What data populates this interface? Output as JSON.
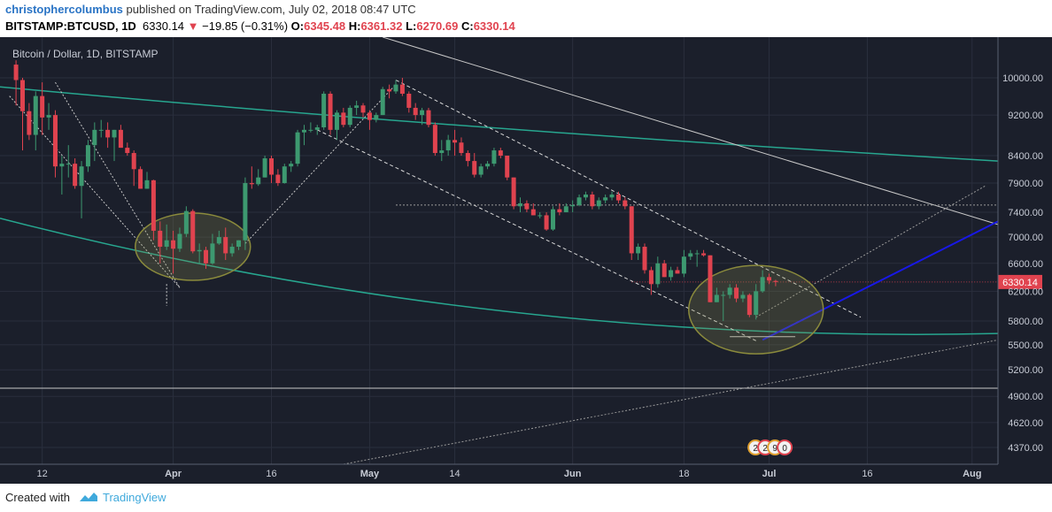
{
  "header": {
    "author": "christophercolumbus",
    "published_text": " published on TradingView.com, July 02, 2018 08:47 UTC",
    "symbol": "BITSTAMP:BTCUSD, 1D",
    "last": "6330.14",
    "change_arrow": "▼",
    "change": "−19.85 (−0.31%)",
    "o_label": "O:",
    "o_value": "6345.48",
    "h_label": "H:",
    "h_value": "6361.32",
    "l_label": "L:",
    "l_value": "6270.69",
    "c_label": "C:",
    "c_value": "6330.14"
  },
  "footer": {
    "created_with": "Created with",
    "brand": "TradingView"
  },
  "colors": {
    "background": "#1b1f2b",
    "up": "#3d9970",
    "down": "#e0434f",
    "ema": "#27a68f",
    "projection": "#1818e6",
    "ellipse": "#8a8a3c",
    "axis_text": "#c8ccd6",
    "price_tag": "#1b1f2b"
  },
  "chart_data": {
    "type": "candlestick",
    "title": "Bitcoin / Dollar, 1D, BITSTAMP",
    "y_axis": {
      "ticks": [
        4370,
        4620,
        4900,
        5200,
        5500,
        5800,
        6200,
        6600,
        7000,
        7400,
        7900,
        8400,
        9200,
        10000
      ],
      "tick_labels": [
        "4370.00",
        "4620.00",
        "4900.00",
        "5200.00",
        "5500.00",
        "5800.00",
        "6200.00",
        "6600.00",
        "7000.00",
        "7400.00",
        "7900.00",
        "8400.00",
        "9200.00",
        "10000.00"
      ],
      "scale": "log",
      "range": [
        4250,
        10500
      ]
    },
    "x_axis": {
      "ticks": [
        "12",
        "Apr",
        "16",
        "May",
        "14",
        "Jun",
        "18",
        "Jul",
        "16",
        "Aug"
      ],
      "range": [
        "2018-03-07",
        "2018-08-07"
      ]
    },
    "last_price_label": "6330.14",
    "last_price": 6330.14,
    "event_badges": [
      "2",
      "2",
      "9",
      "0"
    ],
    "candles": [
      {
        "d": "2018-03-08",
        "o": 10300,
        "h": 10400,
        "l": 9400,
        "c": 9950
      },
      {
        "d": "2018-03-09",
        "o": 9950,
        "h": 10000,
        "l": 8500,
        "c": 9280
      },
      {
        "d": "2018-03-10",
        "o": 9280,
        "h": 9450,
        "l": 8700,
        "c": 8800
      },
      {
        "d": "2018-03-11",
        "o": 8800,
        "h": 9700,
        "l": 8500,
        "c": 9600
      },
      {
        "d": "2018-03-12",
        "o": 9600,
        "h": 9900,
        "l": 8800,
        "c": 9150
      },
      {
        "d": "2018-03-13",
        "o": 9150,
        "h": 9450,
        "l": 8900,
        "c": 9200
      },
      {
        "d": "2018-03-14",
        "o": 9200,
        "h": 9300,
        "l": 8000,
        "c": 8200
      },
      {
        "d": "2018-03-15",
        "o": 8200,
        "h": 8400,
        "l": 7700,
        "c": 8250
      },
      {
        "d": "2018-03-16",
        "o": 8250,
        "h": 8600,
        "l": 8000,
        "c": 8250
      },
      {
        "d": "2018-03-17",
        "o": 8250,
        "h": 8350,
        "l": 7800,
        "c": 7850
      },
      {
        "d": "2018-03-18",
        "o": 7850,
        "h": 8300,
        "l": 7300,
        "c": 8200
      },
      {
        "d": "2018-03-19",
        "o": 8200,
        "h": 8700,
        "l": 8100,
        "c": 8600
      },
      {
        "d": "2018-03-20",
        "o": 8600,
        "h": 9050,
        "l": 8300,
        "c": 8900
      },
      {
        "d": "2018-03-21",
        "o": 8900,
        "h": 9100,
        "l": 8750,
        "c": 8900
      },
      {
        "d": "2018-03-22",
        "o": 8900,
        "h": 9050,
        "l": 8550,
        "c": 8750
      },
      {
        "d": "2018-03-23",
        "o": 8750,
        "h": 8900,
        "l": 8300,
        "c": 8900
      },
      {
        "d": "2018-03-24",
        "o": 8900,
        "h": 9000,
        "l": 8550,
        "c": 8550
      },
      {
        "d": "2018-03-25",
        "o": 8550,
        "h": 8650,
        "l": 8400,
        "c": 8450
      },
      {
        "d": "2018-03-26",
        "o": 8450,
        "h": 8500,
        "l": 7850,
        "c": 8150
      },
      {
        "d": "2018-03-27",
        "o": 8150,
        "h": 8200,
        "l": 7800,
        "c": 7800
      },
      {
        "d": "2018-03-28",
        "o": 7800,
        "h": 8100,
        "l": 7800,
        "c": 7950
      },
      {
        "d": "2018-03-29",
        "o": 7950,
        "h": 7960,
        "l": 6950,
        "c": 7100
      },
      {
        "d": "2018-03-30",
        "o": 7100,
        "h": 7250,
        "l": 6600,
        "c": 6850
      },
      {
        "d": "2018-03-31",
        "o": 6850,
        "h": 7200,
        "l": 6800,
        "c": 6950
      },
      {
        "d": "2018-04-01",
        "o": 6950,
        "h": 7100,
        "l": 6450,
        "c": 6820
      },
      {
        "d": "2018-04-02",
        "o": 6820,
        "h": 7150,
        "l": 6770,
        "c": 7050
      },
      {
        "d": "2018-04-03",
        "o": 7050,
        "h": 7500,
        "l": 7000,
        "c": 7420
      },
      {
        "d": "2018-04-04",
        "o": 7420,
        "h": 7450,
        "l": 6750,
        "c": 6780
      },
      {
        "d": "2018-04-05",
        "o": 6780,
        "h": 6900,
        "l": 6600,
        "c": 6800
      },
      {
        "d": "2018-04-06",
        "o": 6800,
        "h": 6850,
        "l": 6520,
        "c": 6600
      },
      {
        "d": "2018-04-07",
        "o": 6600,
        "h": 7050,
        "l": 6580,
        "c": 6900
      },
      {
        "d": "2018-04-08",
        "o": 6900,
        "h": 7100,
        "l": 6880,
        "c": 7000
      },
      {
        "d": "2018-04-09",
        "o": 7000,
        "h": 7150,
        "l": 6650,
        "c": 6750
      },
      {
        "d": "2018-04-10",
        "o": 6750,
        "h": 6900,
        "l": 6700,
        "c": 6850
      },
      {
        "d": "2018-04-11",
        "o": 6850,
        "h": 6950,
        "l": 6800,
        "c": 6950
      },
      {
        "d": "2018-04-12",
        "o": 6950,
        "h": 8000,
        "l": 6800,
        "c": 7900
      },
      {
        "d": "2018-04-13",
        "o": 7900,
        "h": 8200,
        "l": 7800,
        "c": 7880
      },
      {
        "d": "2018-04-14",
        "o": 7880,
        "h": 8150,
        "l": 7850,
        "c": 8000
      },
      {
        "d": "2018-04-15",
        "o": 8000,
        "h": 8400,
        "l": 8000,
        "c": 8350
      },
      {
        "d": "2018-04-16",
        "o": 8350,
        "h": 8400,
        "l": 7900,
        "c": 8050
      },
      {
        "d": "2018-04-17",
        "o": 8050,
        "h": 8150,
        "l": 7850,
        "c": 7900
      },
      {
        "d": "2018-04-18",
        "o": 7900,
        "h": 8250,
        "l": 7890,
        "c": 8200
      },
      {
        "d": "2018-04-19",
        "o": 8200,
        "h": 8300,
        "l": 8100,
        "c": 8250
      },
      {
        "d": "2018-04-20",
        "o": 8250,
        "h": 8900,
        "l": 8200,
        "c": 8850
      },
      {
        "d": "2018-04-21",
        "o": 8850,
        "h": 9000,
        "l": 8600,
        "c": 8900
      },
      {
        "d": "2018-04-22",
        "o": 8900,
        "h": 9050,
        "l": 8850,
        "c": 8900
      },
      {
        "d": "2018-04-23",
        "o": 8900,
        "h": 9000,
        "l": 8800,
        "c": 8950
      },
      {
        "d": "2018-04-24",
        "o": 8950,
        "h": 9700,
        "l": 8900,
        "c": 9650
      },
      {
        "d": "2018-04-25",
        "o": 9650,
        "h": 9700,
        "l": 8800,
        "c": 8900
      },
      {
        "d": "2018-04-26",
        "o": 8900,
        "h": 9300,
        "l": 8700,
        "c": 9250
      },
      {
        "d": "2018-04-27",
        "o": 9250,
        "h": 9350,
        "l": 8950,
        "c": 9000
      },
      {
        "d": "2018-04-28",
        "o": 9000,
        "h": 9400,
        "l": 8950,
        "c": 9350
      },
      {
        "d": "2018-04-29",
        "o": 9350,
        "h": 9500,
        "l": 9200,
        "c": 9400
      },
      {
        "d": "2018-04-30",
        "o": 9400,
        "h": 9450,
        "l": 9150,
        "c": 9250
      },
      {
        "d": "2018-05-01",
        "o": 9250,
        "h": 9300,
        "l": 8900,
        "c": 9100
      },
      {
        "d": "2018-05-02",
        "o": 9100,
        "h": 9250,
        "l": 9050,
        "c": 9200
      },
      {
        "d": "2018-05-03",
        "o": 9200,
        "h": 9800,
        "l": 9200,
        "c": 9750
      },
      {
        "d": "2018-05-04",
        "o": 9750,
        "h": 9850,
        "l": 9550,
        "c": 9700
      },
      {
        "d": "2018-05-05",
        "o": 9700,
        "h": 9950,
        "l": 9650,
        "c": 9850
      },
      {
        "d": "2018-05-06",
        "o": 9850,
        "h": 10000,
        "l": 9600,
        "c": 9650
      },
      {
        "d": "2018-05-07",
        "o": 9650,
        "h": 9700,
        "l": 9250,
        "c": 9350
      },
      {
        "d": "2018-05-08",
        "o": 9350,
        "h": 9450,
        "l": 9100,
        "c": 9200
      },
      {
        "d": "2018-05-09",
        "o": 9200,
        "h": 9350,
        "l": 9000,
        "c": 9300
      },
      {
        "d": "2018-05-10",
        "o": 9300,
        "h": 9350,
        "l": 8950,
        "c": 9000
      },
      {
        "d": "2018-05-11",
        "o": 9000,
        "h": 9050,
        "l": 8400,
        "c": 8450
      },
      {
        "d": "2018-05-12",
        "o": 8450,
        "h": 8700,
        "l": 8300,
        "c": 8500
      },
      {
        "d": "2018-05-13",
        "o": 8500,
        "h": 8800,
        "l": 8400,
        "c": 8700
      },
      {
        "d": "2018-05-14",
        "o": 8700,
        "h": 8900,
        "l": 8400,
        "c": 8650
      },
      {
        "d": "2018-05-15",
        "o": 8650,
        "h": 8750,
        "l": 8400,
        "c": 8450
      },
      {
        "d": "2018-05-16",
        "o": 8450,
        "h": 8500,
        "l": 8200,
        "c": 8300
      },
      {
        "d": "2018-05-17",
        "o": 8300,
        "h": 8450,
        "l": 8000,
        "c": 8050
      },
      {
        "d": "2018-05-18",
        "o": 8050,
        "h": 8250,
        "l": 8000,
        "c": 8200
      },
      {
        "d": "2018-05-19",
        "o": 8200,
        "h": 8300,
        "l": 8150,
        "c": 8250
      },
      {
        "d": "2018-05-20",
        "o": 8250,
        "h": 8550,
        "l": 8200,
        "c": 8500
      },
      {
        "d": "2018-05-21",
        "o": 8500,
        "h": 8550,
        "l": 8350,
        "c": 8400
      },
      {
        "d": "2018-05-22",
        "o": 8400,
        "h": 8400,
        "l": 7950,
        "c": 8000
      },
      {
        "d": "2018-05-23",
        "o": 8000,
        "h": 8000,
        "l": 7450,
        "c": 7500
      },
      {
        "d": "2018-05-24",
        "o": 7500,
        "h": 7650,
        "l": 7400,
        "c": 7550
      },
      {
        "d": "2018-05-25",
        "o": 7550,
        "h": 7600,
        "l": 7400,
        "c": 7450
      },
      {
        "d": "2018-05-26",
        "o": 7450,
        "h": 7550,
        "l": 7350,
        "c": 7350
      },
      {
        "d": "2018-05-27",
        "o": 7350,
        "h": 7400,
        "l": 7300,
        "c": 7350
      },
      {
        "d": "2018-05-28",
        "o": 7350,
        "h": 7400,
        "l": 7100,
        "c": 7120
      },
      {
        "d": "2018-05-29",
        "o": 7120,
        "h": 7500,
        "l": 7100,
        "c": 7450
      },
      {
        "d": "2018-05-30",
        "o": 7450,
        "h": 7550,
        "l": 7350,
        "c": 7400
      },
      {
        "d": "2018-05-31",
        "o": 7400,
        "h": 7550,
        "l": 7400,
        "c": 7500
      },
      {
        "d": "2018-06-01",
        "o": 7500,
        "h": 7600,
        "l": 7400,
        "c": 7520
      },
      {
        "d": "2018-06-02",
        "o": 7520,
        "h": 7700,
        "l": 7500,
        "c": 7650
      },
      {
        "d": "2018-06-03",
        "o": 7650,
        "h": 7750,
        "l": 7600,
        "c": 7700
      },
      {
        "d": "2018-06-04",
        "o": 7700,
        "h": 7750,
        "l": 7450,
        "c": 7500
      },
      {
        "d": "2018-06-05",
        "o": 7500,
        "h": 7650,
        "l": 7450,
        "c": 7600
      },
      {
        "d": "2018-06-06",
        "o": 7600,
        "h": 7700,
        "l": 7550,
        "c": 7650
      },
      {
        "d": "2018-06-07",
        "o": 7650,
        "h": 7750,
        "l": 7600,
        "c": 7700
      },
      {
        "d": "2018-06-08",
        "o": 7700,
        "h": 7750,
        "l": 7550,
        "c": 7600
      },
      {
        "d": "2018-06-09",
        "o": 7600,
        "h": 7650,
        "l": 7450,
        "c": 7500
      },
      {
        "d": "2018-06-10",
        "o": 7500,
        "h": 7500,
        "l": 6650,
        "c": 6750
      },
      {
        "d": "2018-06-11",
        "o": 6750,
        "h": 6900,
        "l": 6650,
        "c": 6850
      },
      {
        "d": "2018-06-12",
        "o": 6850,
        "h": 6900,
        "l": 6450,
        "c": 6500
      },
      {
        "d": "2018-06-13",
        "o": 6500,
        "h": 6550,
        "l": 6150,
        "c": 6300
      },
      {
        "d": "2018-06-14",
        "o": 6300,
        "h": 6700,
        "l": 6250,
        "c": 6600
      },
      {
        "d": "2018-06-15",
        "o": 6600,
        "h": 6650,
        "l": 6400,
        "c": 6400
      },
      {
        "d": "2018-06-16",
        "o": 6400,
        "h": 6550,
        "l": 6350,
        "c": 6500
      },
      {
        "d": "2018-06-17",
        "o": 6500,
        "h": 6550,
        "l": 6450,
        "c": 6450
      },
      {
        "d": "2018-06-18",
        "o": 6450,
        "h": 6800,
        "l": 6400,
        "c": 6700
      },
      {
        "d": "2018-06-19",
        "o": 6700,
        "h": 6800,
        "l": 6650,
        "c": 6750
      },
      {
        "d": "2018-06-20",
        "o": 6750,
        "h": 6800,
        "l": 6550,
        "c": 6750
      },
      {
        "d": "2018-06-21",
        "o": 6750,
        "h": 6800,
        "l": 6700,
        "c": 6720
      },
      {
        "d": "2018-06-22",
        "o": 6720,
        "h": 6720,
        "l": 6050,
        "c": 6050
      },
      {
        "d": "2018-06-23",
        "o": 6050,
        "h": 6250,
        "l": 6050,
        "c": 6150
      },
      {
        "d": "2018-06-24",
        "o": 6150,
        "h": 6200,
        "l": 5800,
        "c": 6150
      },
      {
        "d": "2018-06-25",
        "o": 6150,
        "h": 6300,
        "l": 6100,
        "c": 6250
      },
      {
        "d": "2018-06-26",
        "o": 6250,
        "h": 6300,
        "l": 6050,
        "c": 6100
      },
      {
        "d": "2018-06-27",
        "o": 6100,
        "h": 6200,
        "l": 6050,
        "c": 6150
      },
      {
        "d": "2018-06-28",
        "o": 6150,
        "h": 6170,
        "l": 5850,
        "c": 5880
      },
      {
        "d": "2018-06-29",
        "o": 5880,
        "h": 6300,
        "l": 5820,
        "c": 6200
      },
      {
        "d": "2018-06-30",
        "o": 6200,
        "h": 6500,
        "l": 6180,
        "c": 6400
      },
      {
        "d": "2018-07-01",
        "o": 6400,
        "h": 6450,
        "l": 6300,
        "c": 6350
      },
      {
        "d": "2018-07-02",
        "o": 6345.48,
        "h": 6361.32,
        "l": 6270.69,
        "c": 6330.14
      }
    ]
  }
}
